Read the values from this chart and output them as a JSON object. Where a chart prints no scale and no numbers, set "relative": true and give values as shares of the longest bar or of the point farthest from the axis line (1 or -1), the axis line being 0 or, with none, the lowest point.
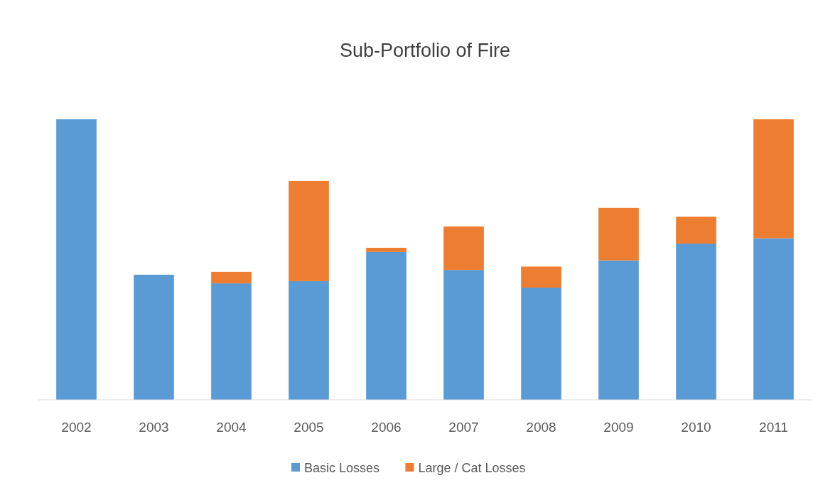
{
  "chart_data": {
    "type": "bar",
    "title": "Sub-Portfolio of Fire",
    "relative": true,
    "stacked": true,
    "legend": "bottom",
    "categories": [
      "2002",
      "2003",
      "2004",
      "2005",
      "2006",
      "2007",
      "2008",
      "2009",
      "2010",
      "2011"
    ],
    "series": [
      {
        "name": "Basic Losses",
        "color": "#5b9bd5",
        "values": [
          1.0,
          0.446,
          0.415,
          0.423,
          0.527,
          0.463,
          0.4,
          0.497,
          0.557,
          0.576
        ]
      },
      {
        "name": "Large / Cat Losses",
        "color": "#ed7d31",
        "values": [
          0,
          0,
          0.041,
          0.357,
          0.015,
          0.155,
          0.075,
          0.187,
          0.096,
          0.424
        ]
      }
    ]
  }
}
